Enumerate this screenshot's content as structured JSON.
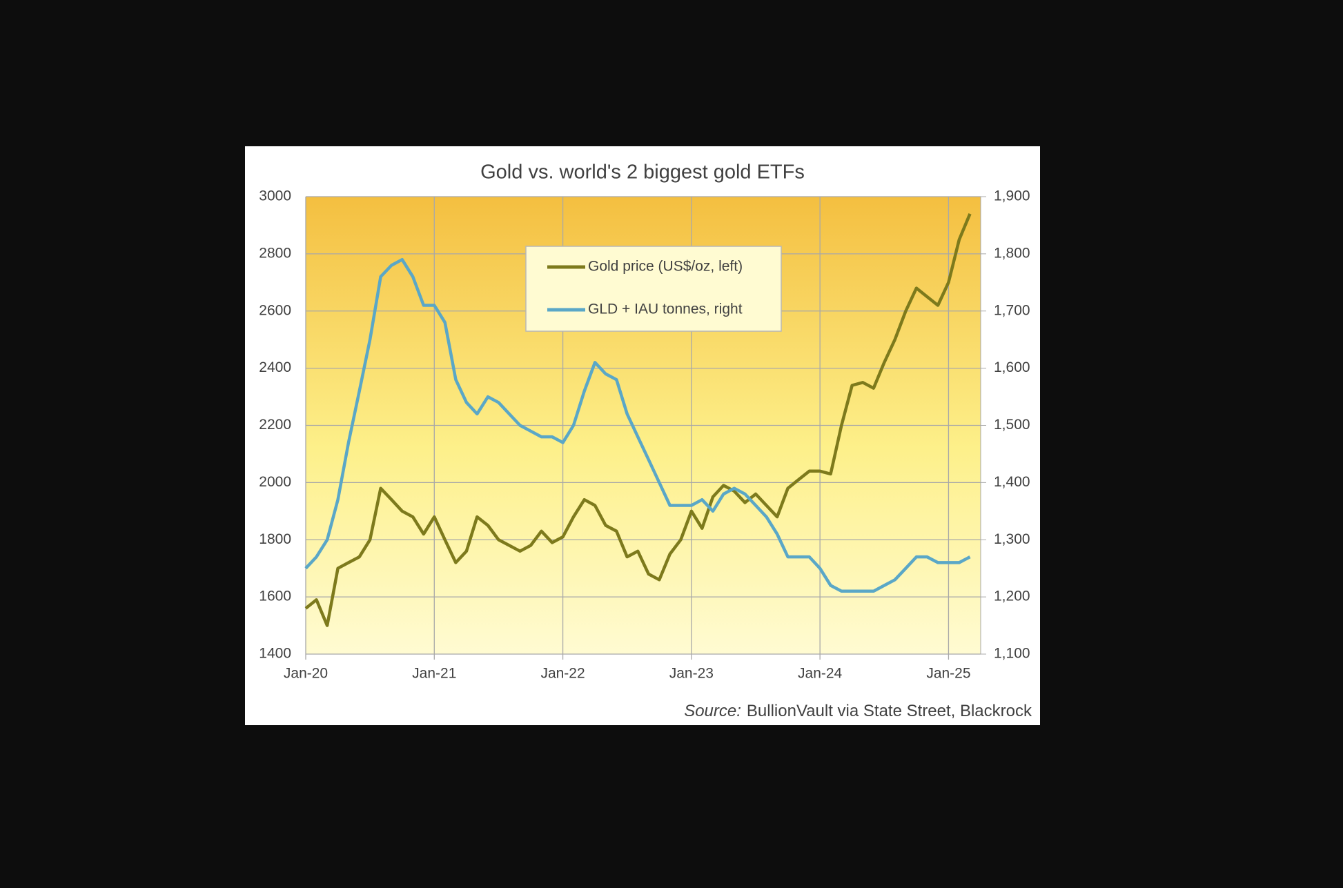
{
  "chart_data": {
    "type": "line",
    "title": "Gold vs. world's 2 biggest gold ETFs",
    "source_label": "Source:",
    "source": "BullionVault via State Street, Blackrock",
    "x": [
      2020.0,
      2020.083,
      2020.167,
      2020.25,
      2020.333,
      2020.417,
      2020.5,
      2020.583,
      2020.667,
      2020.75,
      2020.833,
      2020.917,
      2021.0,
      2021.083,
      2021.167,
      2021.25,
      2021.333,
      2021.417,
      2021.5,
      2021.583,
      2021.667,
      2021.75,
      2021.833,
      2021.917,
      2022.0,
      2022.083,
      2022.167,
      2022.25,
      2022.333,
      2022.417,
      2022.5,
      2022.583,
      2022.667,
      2022.75,
      2022.833,
      2022.917,
      2023.0,
      2023.083,
      2023.167,
      2023.25,
      2023.333,
      2023.417,
      2023.5,
      2023.583,
      2023.667,
      2023.75,
      2023.833,
      2023.917,
      2024.0,
      2024.083,
      2024.167,
      2024.25,
      2024.333,
      2024.417,
      2024.5,
      2024.583,
      2024.667,
      2024.75,
      2024.833,
      2024.917,
      2025.0,
      2025.083,
      2025.167
    ],
    "xlim": [
      2020.0,
      2025.25
    ],
    "xticks": [
      {
        "value": 2020,
        "label": "Jan-20"
      },
      {
        "value": 2021,
        "label": "Jan-21"
      },
      {
        "value": 2022,
        "label": "Jan-22"
      },
      {
        "value": 2023,
        "label": "Jan-23"
      },
      {
        "value": 2024,
        "label": "Jan-24"
      },
      {
        "value": 2025,
        "label": "Jan-25"
      }
    ],
    "ylim": [
      1400,
      3000
    ],
    "yticks": [
      1400,
      1600,
      1800,
      2000,
      2200,
      2400,
      2600,
      2800,
      3000
    ],
    "y2lim": [
      1100,
      1900
    ],
    "y2ticks": [
      {
        "value": 1100,
        "label": "1,100"
      },
      {
        "value": 1200,
        "label": "1,200"
      },
      {
        "value": 1300,
        "label": "1,300"
      },
      {
        "value": 1400,
        "label": "1,400"
      },
      {
        "value": 1500,
        "label": "1,500"
      },
      {
        "value": 1600,
        "label": "1,600"
      },
      {
        "value": 1700,
        "label": "1,700"
      },
      {
        "value": 1800,
        "label": "1,800"
      },
      {
        "value": 1900,
        "label": "1,900"
      }
    ],
    "grid": true,
    "legend": "top-center",
    "series": [
      {
        "name": "Gold price (US$/oz, left)",
        "color": "#7d7a1c",
        "axis": "y",
        "values": [
          1560,
          1590,
          1500,
          1700,
          1720,
          1740,
          1800,
          1980,
          1940,
          1900,
          1880,
          1820,
          1880,
          1800,
          1720,
          1760,
          1880,
          1850,
          1800,
          1780,
          1760,
          1780,
          1830,
          1790,
          1810,
          1880,
          1940,
          1920,
          1850,
          1830,
          1740,
          1760,
          1680,
          1660,
          1750,
          1800,
          1900,
          1840,
          1950,
          1990,
          1970,
          1930,
          1960,
          1920,
          1880,
          1980,
          2010,
          2040,
          2040,
          2030,
          2200,
          2340,
          2350,
          2330,
          2420,
          2500,
          2600,
          2680,
          2650,
          2620,
          2700,
          2850,
          2940
        ]
      },
      {
        "name": "GLD + IAU tonnes, right",
        "color": "#5aa7c7",
        "axis": "y2",
        "values": [
          1250,
          1270,
          1300,
          1370,
          1470,
          1560,
          1650,
          1760,
          1780,
          1790,
          1760,
          1710,
          1710,
          1680,
          1580,
          1540,
          1520,
          1550,
          1540,
          1520,
          1500,
          1490,
          1480,
          1480,
          1470,
          1500,
          1560,
          1610,
          1590,
          1580,
          1520,
          1480,
          1440,
          1400,
          1360,
          1360,
          1360,
          1370,
          1350,
          1380,
          1390,
          1380,
          1360,
          1340,
          1310,
          1270,
          1270,
          1270,
          1250,
          1220,
          1210,
          1210,
          1210,
          1210,
          1220,
          1230,
          1250,
          1270,
          1270,
          1260,
          1260,
          1260,
          1270
        ]
      }
    ]
  }
}
